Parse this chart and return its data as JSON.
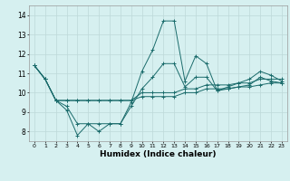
{
  "title": "",
  "xlabel": "Humidex (Indice chaleur)",
  "xlim": [
    -0.5,
    23.5
  ],
  "ylim": [
    7.5,
    14.5
  ],
  "yticks": [
    8,
    9,
    10,
    11,
    12,
    13,
    14
  ],
  "xticks": [
    0,
    1,
    2,
    3,
    4,
    5,
    6,
    7,
    8,
    9,
    10,
    11,
    12,
    13,
    14,
    15,
    16,
    17,
    18,
    19,
    20,
    21,
    22,
    23
  ],
  "xtick_labels": [
    "0",
    "1",
    "2",
    "3",
    "4",
    "5",
    "6",
    "7",
    "8",
    "9",
    "10",
    "11",
    "12",
    "13",
    "14",
    "15",
    "16",
    "17",
    "18",
    "19",
    "20",
    "21",
    "22",
    "23"
  ],
  "background_color": "#d6f0f0",
  "grid_color": "#bdd9d9",
  "line_color": "#1a6b6b",
  "series": [
    [
      11.4,
      10.7,
      9.6,
      9.1,
      7.8,
      8.4,
      8.0,
      8.4,
      8.4,
      9.5,
      11.1,
      12.2,
      13.7,
      13.7,
      10.6,
      11.9,
      11.5,
      10.1,
      10.3,
      10.5,
      10.7,
      11.1,
      10.9,
      10.6
    ],
    [
      11.4,
      10.7,
      9.6,
      9.6,
      9.6,
      9.6,
      9.6,
      9.6,
      9.6,
      9.6,
      10.0,
      10.0,
      10.0,
      10.0,
      10.2,
      10.2,
      10.4,
      10.4,
      10.4,
      10.5,
      10.5,
      10.7,
      10.7,
      10.7
    ],
    [
      11.4,
      10.7,
      9.6,
      9.6,
      9.6,
      9.6,
      9.6,
      9.6,
      9.6,
      9.6,
      9.8,
      9.8,
      9.8,
      9.8,
      10.0,
      10.0,
      10.2,
      10.2,
      10.2,
      10.3,
      10.3,
      10.4,
      10.5,
      10.5
    ],
    [
      11.4,
      10.7,
      9.6,
      9.3,
      8.4,
      8.4,
      8.4,
      8.4,
      8.4,
      9.3,
      10.2,
      10.8,
      11.5,
      11.5,
      10.3,
      10.8,
      10.8,
      10.1,
      10.2,
      10.3,
      10.4,
      10.8,
      10.6,
      10.5
    ]
  ]
}
